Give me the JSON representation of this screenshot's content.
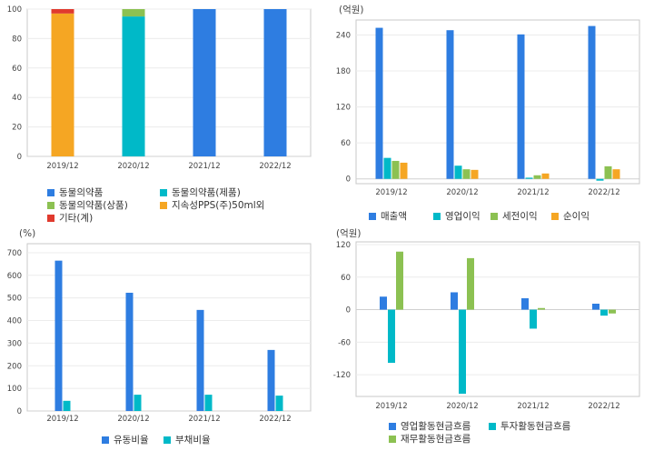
{
  "chart_data": [
    {
      "id": "product-mix",
      "type": "bar",
      "stacked": true,
      "unit_label": "",
      "categories": [
        "2019/12",
        "2020/12",
        "2021/12",
        "2022/12"
      ],
      "ylim": [
        0,
        100
      ],
      "yticks": [
        0,
        20,
        40,
        60,
        80,
        100
      ],
      "series": [
        {
          "name": "동물의약품",
          "color": "#2e7de1",
          "values": [
            0,
            0,
            100,
            100
          ]
        },
        {
          "name": "동물의약품(제품)",
          "color": "#00b9c8",
          "values": [
            0,
            95,
            0,
            0
          ]
        },
        {
          "name": "동물의약품(상품)",
          "color": "#8cc152",
          "values": [
            0,
            5,
            0,
            0
          ]
        },
        {
          "name": "지속성PPS(주)50ml외",
          "color": "#f5a623",
          "values": [
            97,
            0,
            0,
            0
          ]
        },
        {
          "name": "기타(계)",
          "color": "#e03a2e",
          "values": [
            3,
            0,
            0,
            0
          ]
        }
      ]
    },
    {
      "id": "income",
      "type": "bar",
      "unit_label": "(억원)",
      "categories": [
        "2019/12",
        "2020/12",
        "2021/12",
        "2022/12"
      ],
      "ylim": [
        -8,
        265
      ],
      "yticks": [
        0,
        60,
        120,
        180,
        240
      ],
      "series": [
        {
          "name": "매출액",
          "color": "#2e7de1",
          "values": [
            252,
            248,
            241,
            255
          ]
        },
        {
          "name": "영업이익",
          "color": "#00b9c8",
          "values": [
            35,
            22,
            2,
            -3
          ]
        },
        {
          "name": "세전이익",
          "color": "#8cc152",
          "values": [
            30,
            16,
            6,
            21
          ]
        },
        {
          "name": "순이익",
          "color": "#f5a623",
          "values": [
            27,
            15,
            9,
            16
          ]
        }
      ]
    },
    {
      "id": "ratios",
      "type": "bar",
      "unit_label": "(%)",
      "categories": [
        "2019/12",
        "2020/12",
        "2021/12",
        "2022/12"
      ],
      "ylim": [
        0,
        740
      ],
      "yticks": [
        0,
        100,
        200,
        300,
        400,
        500,
        600,
        700
      ],
      "series": [
        {
          "name": "유동비율",
          "color": "#2e7de1",
          "values": [
            665,
            523,
            447,
            270
          ]
        },
        {
          "name": "부채비율",
          "color": "#00b9c8",
          "values": [
            45,
            72,
            72,
            68
          ]
        }
      ]
    },
    {
      "id": "cashflow",
      "type": "bar",
      "unit_label": "(억원)",
      "categories": [
        "2019/12",
        "2020/12",
        "2021/12",
        "2022/12"
      ],
      "ylim": [
        -160,
        125
      ],
      "yticks": [
        -120,
        -60,
        0,
        60,
        120
      ],
      "series": [
        {
          "name": "영업활동현금흐름",
          "color": "#2e7de1",
          "values": [
            24,
            32,
            21,
            11
          ]
        },
        {
          "name": "투자활동현금흐름",
          "color": "#00b9c8",
          "values": [
            -98,
            -155,
            -35,
            -11
          ]
        },
        {
          "name": "재무활동현금흐름",
          "color": "#8cc152",
          "values": [
            107,
            95,
            3,
            -7
          ]
        }
      ]
    }
  ]
}
